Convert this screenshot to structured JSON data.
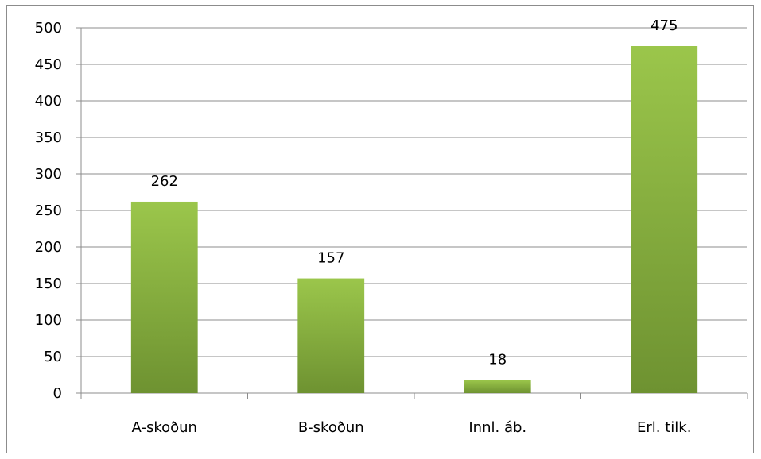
{
  "chart_data": {
    "type": "bar",
    "title": "",
    "xlabel": "",
    "ylabel": "",
    "categories": [
      "A-skoðun",
      "B-skoðun",
      "Innl. áb.",
      "Erl. tilk."
    ],
    "values": [
      262,
      157,
      18,
      475
    ],
    "data_labels": [
      "262",
      "157",
      "18",
      "475"
    ],
    "ylim": [
      0,
      500
    ],
    "yticks": [
      0,
      50,
      100,
      150,
      200,
      250,
      300,
      350,
      400,
      450,
      500
    ],
    "grid": true,
    "legend": "none",
    "colors": {
      "bar_top": "#9bc64b",
      "bar_bottom": "#6e9231",
      "grid": "#8c8c8c",
      "axis": "#8c8c8c"
    }
  }
}
